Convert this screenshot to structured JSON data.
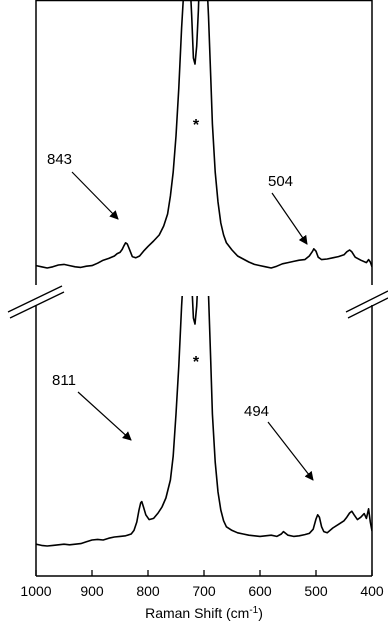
{
  "chart_data": {
    "type": "line",
    "title": "",
    "xlabel": {
      "base": "Raman Shift (cm",
      "sup": "-1",
      "close": ")"
    },
    "xlim": [
      1000,
      400
    ],
    "x_reversed": true,
    "grid": false,
    "legend": "none",
    "ticks": [
      "1000",
      "900",
      "800",
      "700",
      "600",
      "500",
      "400"
    ],
    "tick_values": [
      1000,
      900,
      800,
      700,
      600,
      500,
      400
    ],
    "series": [
      {
        "id": "upper",
        "points": [
          [
            1000,
            0.04
          ],
          [
            990,
            0.02
          ],
          [
            980,
            0.0
          ],
          [
            970,
            0.02
          ],
          [
            960,
            0.05
          ],
          [
            950,
            0.06
          ],
          [
            940,
            0.04
          ],
          [
            930,
            0.02
          ],
          [
            920,
            0.01
          ],
          [
            910,
            0.03
          ],
          [
            900,
            0.04
          ],
          [
            890,
            0.08
          ],
          [
            880,
            0.13
          ],
          [
            870,
            0.16
          ],
          [
            860,
            0.2
          ],
          [
            855,
            0.24
          ],
          [
            850,
            0.26
          ],
          [
            846,
            0.31
          ],
          [
            843,
            0.37
          ],
          [
            840,
            0.42
          ],
          [
            837,
            0.4
          ],
          [
            833,
            0.31
          ],
          [
            828,
            0.19
          ],
          [
            822,
            0.17
          ],
          [
            815,
            0.2
          ],
          [
            808,
            0.28
          ],
          [
            800,
            0.36
          ],
          [
            790,
            0.45
          ],
          [
            780,
            0.55
          ],
          [
            772,
            0.7
          ],
          [
            765,
            0.9
          ],
          [
            760,
            1.2
          ],
          [
            755,
            1.6
          ],
          [
            750,
            2.2
          ],
          [
            745,
            3.0
          ],
          [
            740,
            4.0
          ],
          [
            735,
            4.8
          ],
          [
            730,
            5.2
          ],
          [
            726,
            5.0
          ],
          [
            722,
            4.2
          ],
          [
            719,
            3.5
          ],
          [
            716,
            3.4
          ],
          [
            713,
            3.7
          ],
          [
            710,
            4.3
          ],
          [
            707,
            5.2
          ],
          [
            705,
            5.6
          ],
          [
            700,
            5.6
          ],
          [
            697,
            5.2
          ],
          [
            692,
            4.2
          ],
          [
            688,
            3.2
          ],
          [
            685,
            2.4
          ],
          [
            680,
            1.6
          ],
          [
            675,
            1.1
          ],
          [
            670,
            0.75
          ],
          [
            665,
            0.55
          ],
          [
            660,
            0.42
          ],
          [
            650,
            0.3
          ],
          [
            640,
            0.2
          ],
          [
            630,
            0.15
          ],
          [
            620,
            0.1
          ],
          [
            610,
            0.06
          ],
          [
            600,
            0.04
          ],
          [
            590,
            0.02
          ],
          [
            580,
            0.0
          ],
          [
            570,
            0.03
          ],
          [
            560,
            0.07
          ],
          [
            550,
            0.09
          ],
          [
            540,
            0.11
          ],
          [
            530,
            0.13
          ],
          [
            520,
            0.14
          ],
          [
            512,
            0.2
          ],
          [
            506,
            0.28
          ],
          [
            504,
            0.32
          ],
          [
            500,
            0.28
          ],
          [
            496,
            0.18
          ],
          [
            490,
            0.14
          ],
          [
            480,
            0.15
          ],
          [
            470,
            0.17
          ],
          [
            460,
            0.19
          ],
          [
            450,
            0.22
          ],
          [
            445,
            0.27
          ],
          [
            440,
            0.3
          ],
          [
            436,
            0.27
          ],
          [
            430,
            0.18
          ],
          [
            420,
            0.13
          ],
          [
            410,
            0.09
          ],
          [
            406,
            0.14
          ],
          [
            403,
            0.1
          ],
          [
            400,
            0.02
          ]
        ]
      },
      {
        "id": "lower",
        "points": [
          [
            1000,
            0.03
          ],
          [
            990,
            0.01
          ],
          [
            980,
            0.0
          ],
          [
            970,
            0.01
          ],
          [
            960,
            0.02
          ],
          [
            950,
            0.03
          ],
          [
            940,
            0.02
          ],
          [
            930,
            0.03
          ],
          [
            920,
            0.04
          ],
          [
            910,
            0.07
          ],
          [
            900,
            0.1
          ],
          [
            890,
            0.11
          ],
          [
            880,
            0.1
          ],
          [
            870,
            0.13
          ],
          [
            860,
            0.15
          ],
          [
            850,
            0.16
          ],
          [
            840,
            0.17
          ],
          [
            830,
            0.2
          ],
          [
            825,
            0.26
          ],
          [
            820,
            0.4
          ],
          [
            816,
            0.6
          ],
          [
            813,
            0.72
          ],
          [
            811,
            0.74
          ],
          [
            808,
            0.65
          ],
          [
            804,
            0.52
          ],
          [
            798,
            0.44
          ],
          [
            790,
            0.46
          ],
          [
            782,
            0.55
          ],
          [
            775,
            0.65
          ],
          [
            768,
            0.8
          ],
          [
            760,
            1.1
          ],
          [
            755,
            1.5
          ],
          [
            750,
            2.2
          ],
          [
            745,
            3.0
          ],
          [
            740,
            4.0
          ],
          [
            735,
            4.8
          ],
          [
            730,
            5.2
          ],
          [
            726,
            5.0
          ],
          [
            722,
            4.4
          ],
          [
            719,
            3.8
          ],
          [
            716,
            3.7
          ],
          [
            713,
            4.0
          ],
          [
            710,
            4.6
          ],
          [
            707,
            5.2
          ],
          [
            705,
            5.6
          ],
          [
            700,
            5.6
          ],
          [
            697,
            5.2
          ],
          [
            692,
            4.2
          ],
          [
            688,
            3.1
          ],
          [
            685,
            2.2
          ],
          [
            680,
            1.4
          ],
          [
            675,
            0.9
          ],
          [
            670,
            0.6
          ],
          [
            665,
            0.42
          ],
          [
            660,
            0.32
          ],
          [
            650,
            0.26
          ],
          [
            640,
            0.22
          ],
          [
            630,
            0.2
          ],
          [
            620,
            0.18
          ],
          [
            610,
            0.17
          ],
          [
            600,
            0.16
          ],
          [
            590,
            0.17
          ],
          [
            580,
            0.18
          ],
          [
            570,
            0.16
          ],
          [
            562,
            0.2
          ],
          [
            558,
            0.24
          ],
          [
            550,
            0.18
          ],
          [
            540,
            0.16
          ],
          [
            530,
            0.17
          ],
          [
            520,
            0.19
          ],
          [
            512,
            0.21
          ],
          [
            505,
            0.28
          ],
          [
            500,
            0.45
          ],
          [
            497,
            0.52
          ],
          [
            494,
            0.48
          ],
          [
            490,
            0.32
          ],
          [
            486,
            0.24
          ],
          [
            480,
            0.22
          ],
          [
            470,
            0.3
          ],
          [
            460,
            0.36
          ],
          [
            450,
            0.42
          ],
          [
            445,
            0.48
          ],
          [
            440,
            0.55
          ],
          [
            436,
            0.58
          ],
          [
            432,
            0.52
          ],
          [
            426,
            0.44
          ],
          [
            420,
            0.48
          ],
          [
            414,
            0.54
          ],
          [
            410,
            0.46
          ],
          [
            406,
            0.62
          ],
          [
            403,
            0.4
          ],
          [
            400,
            0.25
          ]
        ]
      }
    ],
    "annotations": [
      {
        "id": "843",
        "text": "843",
        "series": "upper",
        "x": 843
      },
      {
        "id": "504",
        "text": "504",
        "series": "upper",
        "x": 504
      },
      {
        "id": "811",
        "text": "811",
        "series": "lower",
        "x": 811
      },
      {
        "id": "494",
        "text": "494",
        "series": "lower",
        "x": 494
      }
    ],
    "solvent_markers": [
      "*",
      "*"
    ]
  }
}
